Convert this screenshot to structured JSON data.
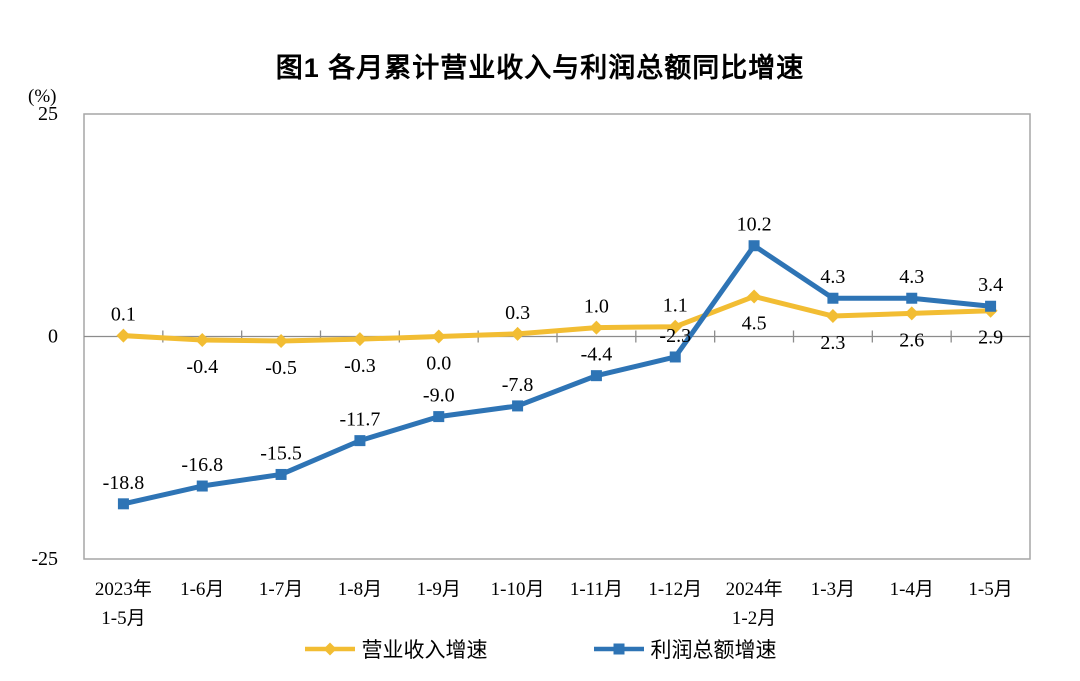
{
  "title": "图1  各月累计营业收入与利润总额同比增速",
  "y_axis": {
    "unit_label": "(%)",
    "ticks": [
      {
        "label": "25",
        "value": 25
      },
      {
        "label": "0",
        "value": 0
      },
      {
        "label": "-25",
        "value": -25
      }
    ]
  },
  "colors": {
    "plot_border": "#a6a6a6",
    "axis_line": "#8c8c8c",
    "revenue": "#f2bd33",
    "profit": "#2e74b5",
    "text": "#000000"
  },
  "legend": {
    "items": [
      {
        "label": "营业收入增速"
      },
      {
        "label": "利润总额增速"
      }
    ]
  },
  "chart_data": {
    "type": "line",
    "title": "图1 各月累计营业收入与利润总额同比增速",
    "ylabel": "(%)",
    "ylim": [
      -25,
      25
    ],
    "y_ticks": [
      25,
      0,
      -25
    ],
    "grid": false,
    "legend_position": "bottom",
    "categories": [
      [
        "2023年",
        "1-5月"
      ],
      [
        "1-6月"
      ],
      [
        "1-7月"
      ],
      [
        "1-8月"
      ],
      [
        "1-9月"
      ],
      [
        "1-10月"
      ],
      [
        "1-11月"
      ],
      [
        "1-12月"
      ],
      [
        "2024年",
        "1-2月"
      ],
      [
        "1-3月"
      ],
      [
        "1-4月"
      ],
      [
        "1-5月"
      ]
    ],
    "series": [
      {
        "key": "revenue-growth",
        "name": "营业收入增速",
        "color": "#f2bd33",
        "marker": "diamond",
        "values": [
          0.1,
          -0.4,
          -0.5,
          -0.3,
          0.0,
          0.3,
          1.0,
          1.1,
          4.5,
          2.3,
          2.6,
          2.9
        ],
        "labels": [
          "0.1",
          "-0.4",
          "-0.5",
          "-0.3",
          "0.0",
          "0.3",
          "1.0",
          "1.1",
          "4.5",
          "2.3",
          "2.6",
          "2.9"
        ],
        "label_side": [
          "above",
          "below",
          "below",
          "below",
          "below",
          "above",
          "above",
          "above",
          "below",
          "below",
          "below",
          "below"
        ]
      },
      {
        "key": "profit-growth",
        "name": "利润总额增速",
        "color": "#2e74b5",
        "marker": "square",
        "values": [
          -18.8,
          -16.8,
          -15.5,
          -11.7,
          -9.0,
          -7.8,
          -4.4,
          -2.3,
          10.2,
          4.3,
          4.3,
          3.4
        ],
        "labels": [
          "-18.8",
          "-16.8",
          "-15.5",
          "-11.7",
          "-9.0",
          "-7.8",
          "-4.4",
          "-2.3",
          "10.2",
          "4.3",
          "4.3",
          "3.4"
        ],
        "label_side": [
          "above",
          "above",
          "above",
          "above",
          "above",
          "above",
          "above",
          "above",
          "above",
          "above",
          "above",
          "above"
        ]
      }
    ]
  }
}
